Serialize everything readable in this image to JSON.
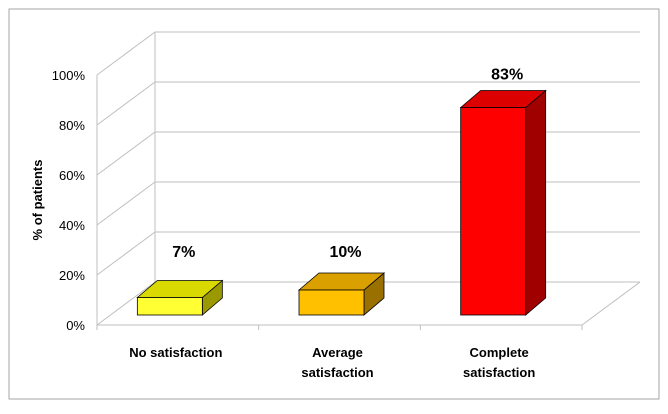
{
  "chart_data": {
    "type": "bar",
    "title": "",
    "xlabel": "",
    "ylabel": "% of patients",
    "ylim": [
      0,
      100
    ],
    "yticks": [
      "0%",
      "20%",
      "40%",
      "60%",
      "80%",
      "100%"
    ],
    "categories": [
      [
        "No satisfaction"
      ],
      [
        "Average",
        "satisfaction"
      ],
      [
        "Complete",
        "satisfaction"
      ]
    ],
    "values": [
      7,
      10,
      83
    ],
    "data_labels": [
      "7%",
      "10%",
      "83%"
    ],
    "colors": {
      "front": [
        "#ffff33",
        "#ffc000",
        "#ff0000"
      ],
      "top": [
        "#d9d900",
        "#d9a000",
        "#dd0000"
      ],
      "side": [
        "#9a9a00",
        "#9a7000",
        "#a00000"
      ]
    },
    "grid": true,
    "legend": "none",
    "style": "3d-column"
  }
}
